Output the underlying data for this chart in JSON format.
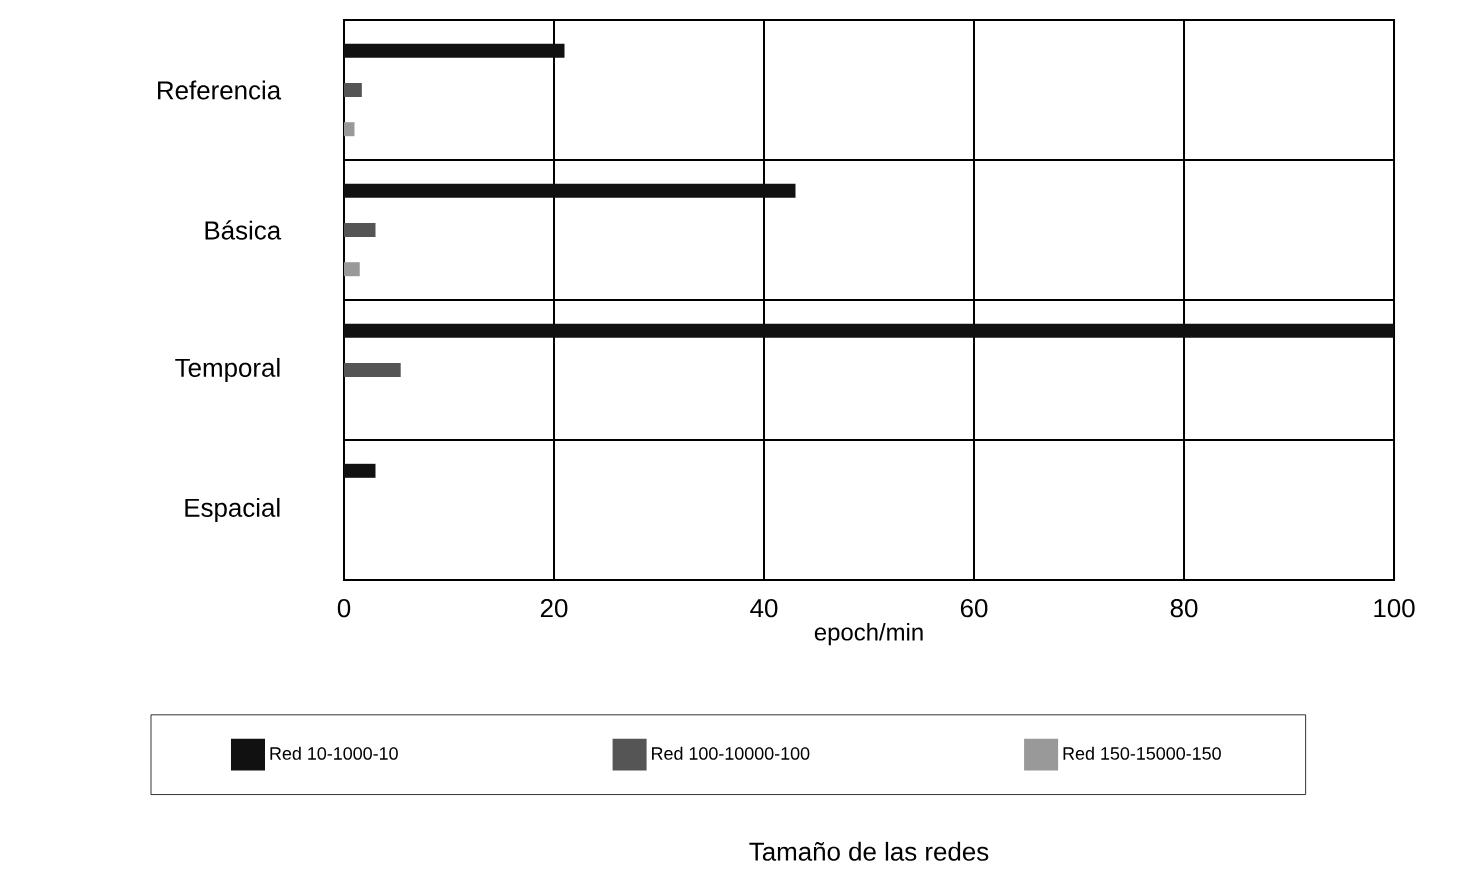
{
  "chart_data": {
    "type": "bar",
    "orientation": "horizontal",
    "xlabel": "epoch/min",
    "legend_title": "Tamaño de las redes",
    "categories": [
      "Referencia",
      "Básica",
      "Temporal",
      "Espacial"
    ],
    "series": [
      {
        "name": "Red 10-1000-10",
        "color": "#111111",
        "values": [
          21,
          43,
          100,
          3
        ]
      },
      {
        "name": "Red 100-10000-100",
        "color": "#555555",
        "values": [
          1.7,
          3,
          5.4,
          null
        ]
      },
      {
        "name": "Red 150-15000-150",
        "color": "#999999",
        "values": [
          1,
          1.5,
          null,
          null
        ]
      }
    ],
    "xlim": [
      0,
      100
    ],
    "xticks": [
      0,
      20,
      40,
      60,
      80,
      100
    ],
    "grid": true,
    "legend": "bottom"
  }
}
